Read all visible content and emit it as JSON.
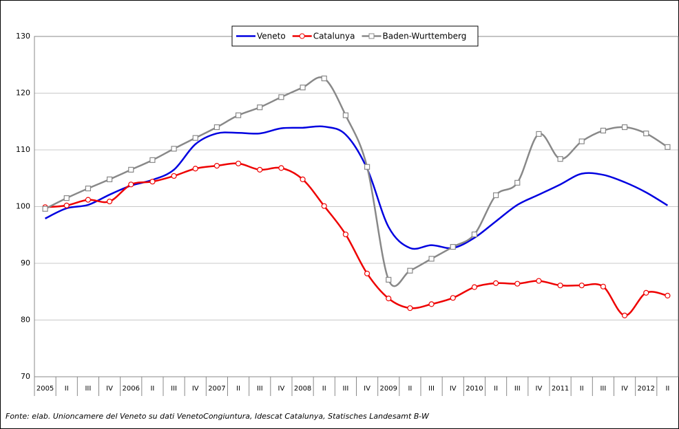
{
  "chart_data": {
    "type": "line",
    "source": "Fonte: elab. Unioncamere del Veneto su dati VenetoCongiuntura, Idescat Catalunya, Statisches Landesamt B-W",
    "categories": [
      "2005",
      "II",
      "III",
      "IV",
      "2006",
      "II",
      "III",
      "IV",
      "2007",
      "II",
      "III",
      "IV",
      "2008",
      "II",
      "III",
      "IV",
      "2009",
      "II",
      "III",
      "IV",
      "2010",
      "II",
      "III",
      "IV",
      "2011",
      "II",
      "III",
      "IV",
      "2012",
      "II"
    ],
    "ylim": [
      70,
      130
    ],
    "yticks": [
      70,
      80,
      90,
      100,
      110,
      120,
      130
    ],
    "grid": true,
    "series": [
      {
        "name": "Veneto",
        "color": "#0000e0",
        "marker": "none",
        "values": [
          97.9,
          99.7,
          100.3,
          102.1,
          103.7,
          104.7,
          106.5,
          111.0,
          112.9,
          113.0,
          112.9,
          113.8,
          113.9,
          114.1,
          112.7,
          106.7,
          96.4,
          92.7,
          93.2,
          92.7,
          94.5,
          97.4,
          100.3,
          102.1,
          103.9,
          105.8,
          105.6,
          104.3,
          102.5,
          100.2
        ]
      },
      {
        "name": "Catalunya",
        "color": "#ee0000",
        "marker": "circle",
        "values": [
          99.9,
          100.2,
          101.2,
          100.9,
          103.9,
          104.4,
          105.4,
          106.7,
          107.2,
          107.6,
          106.5,
          106.8,
          104.8,
          100.1,
          95.1,
          88.2,
          83.8,
          82.1,
          82.8,
          83.9,
          85.8,
          86.5,
          86.4,
          86.9,
          86.1,
          86.1,
          85.9,
          80.8,
          84.8,
          84.3
        ]
      },
      {
        "name": "Baden-Wurttemberg",
        "color": "#888888",
        "marker": "square",
        "values": [
          99.6,
          101.5,
          103.2,
          104.8,
          106.5,
          108.2,
          110.2,
          112.1,
          114.0,
          116.1,
          117.5,
          119.3,
          121.0,
          122.6,
          116.1,
          107.0,
          87.1,
          88.7,
          90.8,
          92.9,
          95.1,
          102.0,
          104.2,
          112.8,
          108.4,
          111.5,
          113.4,
          114.0,
          112.9,
          110.5
        ]
      }
    ]
  }
}
